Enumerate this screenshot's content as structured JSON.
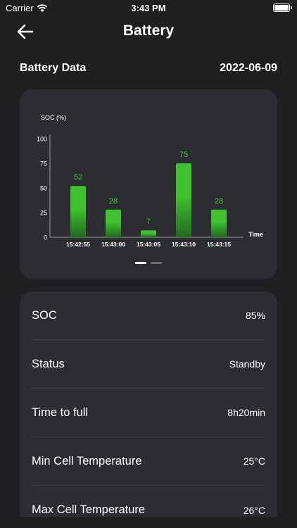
{
  "status_bar": {
    "carrier": "Carrier",
    "time": "3:43 PM"
  },
  "nav": {
    "title": "Battery"
  },
  "section": {
    "label": "Battery Data",
    "date": "2022-06-09"
  },
  "chart_data": {
    "type": "bar",
    "categories": [
      "15:42:55",
      "15:43:00",
      "15:43:05",
      "15:43:10",
      "15:43:15"
    ],
    "values": [
      52,
      28,
      7,
      75,
      28
    ],
    "ylabel": "SOC (%)",
    "xlabel": "Time",
    "yticks": [
      0,
      25,
      50,
      75,
      100
    ],
    "ylim": [
      0,
      100
    ],
    "bar_color": "#3fc130"
  },
  "pager": {
    "pages": 2,
    "active": 0
  },
  "info": [
    {
      "label": "SOC",
      "value": "85%"
    },
    {
      "label": "Status",
      "value": "Standby"
    },
    {
      "label": "Time to full",
      "value": "8h20min"
    },
    {
      "label": "Min Cell Temperature",
      "value": "25°C"
    },
    {
      "label": "Max Cell Temperature",
      "value": "26°C"
    }
  ]
}
